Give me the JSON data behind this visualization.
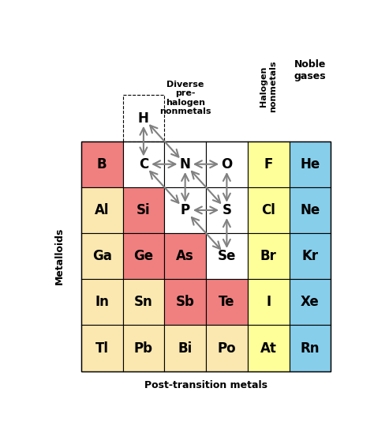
{
  "bottom_label": "Post-transition metals",
  "left_label": "Metalloids",
  "label_noble": "Noble\ngases",
  "label_halogen": "Halogen\nnonmetals",
  "label_diverse": "Diverse\npre-\nhalogen\nnonmetals",
  "colors": {
    "metalloid": "#F08080",
    "noble": "#87CEEB",
    "halogen": "#FFFF99",
    "post_transition": "#FAE8B0",
    "nonmetal": "#FFFFFF"
  },
  "grid_layout": [
    [
      "B",
      "C",
      "N",
      "O",
      "F",
      "He"
    ],
    [
      "Al",
      "Si",
      "P",
      "S",
      "Cl",
      "Ne"
    ],
    [
      "Ga",
      "Ge",
      "As",
      "Se",
      "Br",
      "Kr"
    ],
    [
      "In",
      "Sn",
      "Sb",
      "Te",
      "I",
      "Xe"
    ],
    [
      "Tl",
      "Pb",
      "Bi",
      "Po",
      "At",
      "Rn"
    ]
  ],
  "elem_colors": {
    "B": "metalloid",
    "Si": "metalloid",
    "Ge": "metalloid",
    "As": "metalloid",
    "Sb": "metalloid",
    "Te": "metalloid",
    "He": "noble",
    "Ne": "noble",
    "Ar": "noble",
    "Kr": "noble",
    "Xe": "noble",
    "Rn": "noble",
    "F": "halogen",
    "Cl": "halogen",
    "Br": "halogen",
    "I": "halogen",
    "At": "halogen",
    "Al": "post_transition",
    "Ga": "post_transition",
    "In": "post_transition",
    "Tl": "post_transition",
    "Sn": "post_transition",
    "Pb": "post_transition",
    "Bi": "post_transition",
    "Po": "post_transition",
    "C": "nonmetal",
    "N": "nonmetal",
    "O": "nonmetal",
    "P": "nonmetal",
    "S": "nonmetal",
    "Se": "nonmetal",
    "H": "nonmetal"
  },
  "arrows": [
    [
      1,
      -1,
      1,
      0
    ],
    [
      1,
      -1,
      2,
      0
    ],
    [
      1,
      0,
      2,
      0
    ],
    [
      2,
      0,
      3,
      0
    ],
    [
      1,
      0,
      2,
      1
    ],
    [
      2,
      0,
      2,
      1
    ],
    [
      2,
      0,
      3,
      1
    ],
    [
      3,
      0,
      3,
      1
    ],
    [
      2,
      1,
      3,
      1
    ],
    [
      2,
      1,
      3,
      2
    ],
    [
      3,
      1,
      3,
      2
    ]
  ]
}
